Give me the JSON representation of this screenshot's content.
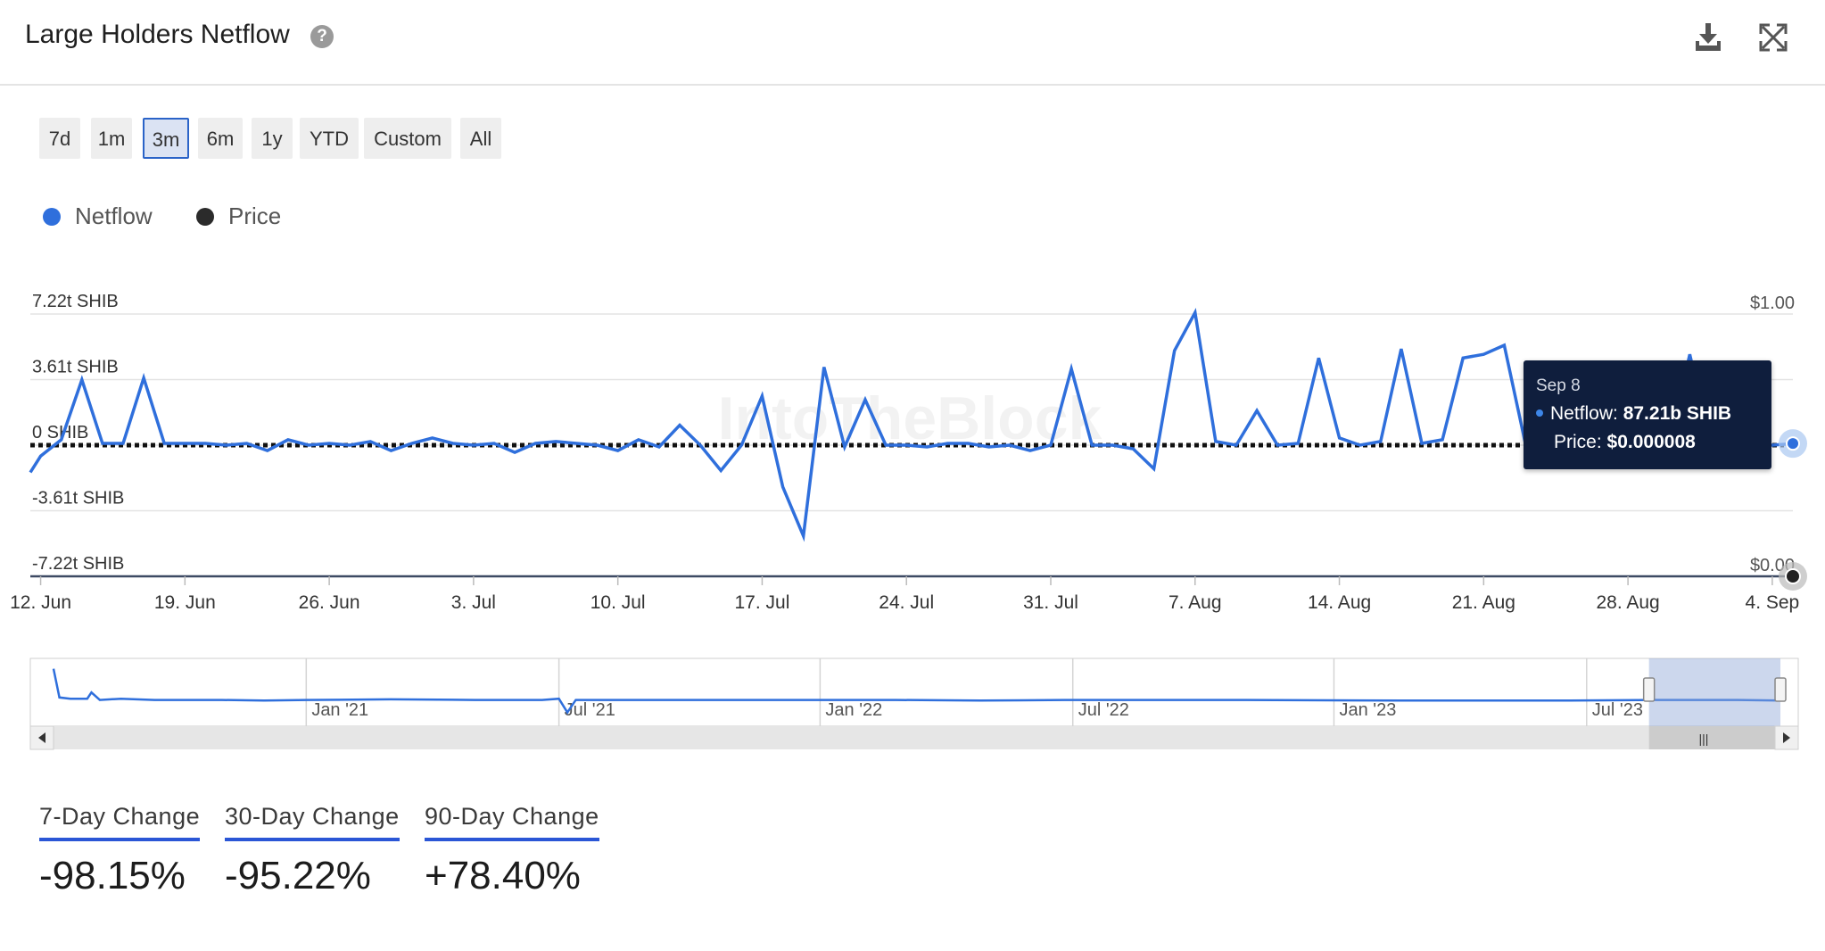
{
  "header": {
    "title": "Large Holders Netflow"
  },
  "range_buttons": [
    {
      "label": "7d",
      "active": false
    },
    {
      "label": "1m",
      "active": false
    },
    {
      "label": "3m",
      "active": true
    },
    {
      "label": "6m",
      "active": false
    },
    {
      "label": "1y",
      "active": false
    },
    {
      "label": "YTD",
      "active": false
    },
    {
      "label": "Custom",
      "active": false
    },
    {
      "label": "All",
      "active": false
    }
  ],
  "legend": [
    {
      "name": "Netflow",
      "color": "#2f6fdc"
    },
    {
      "name": "Price",
      "color": "#2b2b2b"
    }
  ],
  "tooltip": {
    "date": "Sep 8",
    "netflow_label": "Netflow:",
    "netflow_value": "87.21b SHIB",
    "price_label": "Price:",
    "price_value": "$0.000008"
  },
  "watermark": "IntoTheBlock",
  "chart_data": {
    "type": "line",
    "y_left": {
      "ticks": [
        7.22,
        3.61,
        0,
        -3.61,
        -7.22
      ],
      "labels": [
        "7.22t SHIB",
        "3.61t SHIB",
        "0 SHIB",
        "-3.61t SHIB",
        "-7.22t SHIB"
      ],
      "unit": "t SHIB"
    },
    "y_right": {
      "ticks": [
        1.0,
        0.0
      ],
      "labels": [
        "$1.00",
        "$0.00"
      ]
    },
    "x_ticks": [
      {
        "label": "12. Jun",
        "day": 0
      },
      {
        "label": "19. Jun",
        "day": 7
      },
      {
        "label": "26. Jun",
        "day": 14
      },
      {
        "label": "3. Jul",
        "day": 21
      },
      {
        "label": "10. Jul",
        "day": 28
      },
      {
        "label": "17. Jul",
        "day": 35
      },
      {
        "label": "24. Jul",
        "day": 42
      },
      {
        "label": "31. Jul",
        "day": 49
      },
      {
        "label": "7. Aug",
        "day": 56
      },
      {
        "label": "14. Aug",
        "day": 63
      },
      {
        "label": "21. Aug",
        "day": 70
      },
      {
        "label": "28. Aug",
        "day": 77
      },
      {
        "label": "4. Sep",
        "day": 84
      }
    ],
    "series": [
      {
        "name": "Netflow",
        "color": "#2f6fdc",
        "points": [
          [
            -0.5,
            -1.5
          ],
          [
            0,
            -0.6
          ],
          [
            1,
            0.3
          ],
          [
            2,
            3.6
          ],
          [
            3,
            0.1
          ],
          [
            4,
            0.1
          ],
          [
            5,
            3.7
          ],
          [
            6,
            0.1
          ],
          [
            7,
            0.1
          ],
          [
            8,
            0.1
          ],
          [
            9,
            0.0
          ],
          [
            10,
            0.1
          ],
          [
            11,
            -0.3
          ],
          [
            12,
            0.3
          ],
          [
            13,
            0.0
          ],
          [
            14,
            0.1
          ],
          [
            15,
            0.0
          ],
          [
            16,
            0.2
          ],
          [
            17,
            -0.3
          ],
          [
            18,
            0.1
          ],
          [
            19,
            0.4
          ],
          [
            20,
            0.1
          ],
          [
            21,
            0.0
          ],
          [
            22,
            0.1
          ],
          [
            23,
            -0.4
          ],
          [
            24,
            0.1
          ],
          [
            25,
            0.2
          ],
          [
            26,
            0.1
          ],
          [
            27,
            0.0
          ],
          [
            28,
            -0.3
          ],
          [
            29,
            0.3
          ],
          [
            30,
            -0.1
          ],
          [
            31,
            1.1
          ],
          [
            32,
            0.0
          ],
          [
            33,
            -1.4
          ],
          [
            34,
            0.0
          ],
          [
            35,
            2.7
          ],
          [
            36,
            -2.3
          ],
          [
            37,
            -5.0
          ],
          [
            38,
            4.3
          ],
          [
            39,
            -0.1
          ],
          [
            40,
            2.5
          ],
          [
            41,
            0.0
          ],
          [
            42,
            0.0
          ],
          [
            43,
            -0.1
          ],
          [
            44,
            0.1
          ],
          [
            45,
            0.1
          ],
          [
            46,
            -0.1
          ],
          [
            47,
            0.0
          ],
          [
            48,
            -0.3
          ],
          [
            49,
            0.0
          ],
          [
            50,
            4.2
          ],
          [
            51,
            0.0
          ],
          [
            52,
            0.0
          ],
          [
            53,
            -0.2
          ],
          [
            54,
            -1.3
          ],
          [
            55,
            5.2
          ],
          [
            56,
            7.3
          ],
          [
            57,
            0.2
          ],
          [
            58,
            0.0
          ],
          [
            59,
            1.9
          ],
          [
            60,
            0.0
          ],
          [
            61,
            0.1
          ],
          [
            62,
            4.8
          ],
          [
            63,
            0.4
          ],
          [
            64,
            0.0
          ],
          [
            65,
            0.2
          ],
          [
            66,
            5.3
          ],
          [
            67,
            0.1
          ],
          [
            68,
            0.3
          ],
          [
            69,
            4.8
          ],
          [
            70,
            5.0
          ],
          [
            71,
            5.5
          ],
          [
            72,
            0.2
          ],
          [
            73,
            1.2
          ],
          [
            74,
            0.0
          ],
          [
            75,
            1.1
          ],
          [
            76,
            0.0
          ],
          [
            77,
            0.0
          ],
          [
            78,
            2.9
          ],
          [
            79,
            0.0
          ],
          [
            80,
            5.0
          ],
          [
            81,
            0.0
          ],
          [
            82,
            0.0
          ],
          [
            83,
            0.1
          ],
          [
            84,
            0.0
          ],
          [
            85,
            0.09
          ]
        ]
      },
      {
        "name": "Price",
        "color": "#111111",
        "points": [
          [
            -0.5,
            8e-06
          ],
          [
            85,
            8e-06
          ]
        ]
      }
    ],
    "x_range": [
      -0.5,
      85
    ],
    "y_range": [
      -7.22,
      7.22
    ]
  },
  "navigator": {
    "labels": [
      "Jan '21",
      "Jul '21",
      "Jan '22",
      "Jul '22",
      "Jan '23",
      "Jul '23"
    ],
    "series": [
      [
        0,
        2.6
      ],
      [
        0.7,
        0.3
      ],
      [
        2,
        0.2
      ],
      [
        4,
        0.2
      ],
      [
        4.5,
        0.7
      ],
      [
        5.5,
        0.1
      ],
      [
        8,
        0.2
      ],
      [
        12,
        0.1
      ],
      [
        20,
        0.1
      ],
      [
        25,
        0.05
      ],
      [
        30,
        0.1
      ],
      [
        40,
        0.15
      ],
      [
        50,
        0.1
      ],
      [
        58,
        0.1
      ],
      [
        60,
        0.2
      ],
      [
        61,
        -0.9
      ],
      [
        62,
        0.1
      ],
      [
        70,
        0.1
      ],
      [
        85,
        0.1
      ],
      [
        90,
        0.1
      ],
      [
        100,
        0.1
      ],
      [
        110,
        0.05
      ],
      [
        120,
        0.1
      ],
      [
        140,
        0.1
      ],
      [
        160,
        0.05
      ],
      [
        180,
        0.05
      ],
      [
        190,
        0.1
      ],
      [
        200,
        0.1
      ],
      [
        205,
        0.05
      ]
    ],
    "selection": [
      189.4,
      205
    ]
  },
  "stats": [
    {
      "label": "7-Day Change",
      "value": "-98.15%"
    },
    {
      "label": "30-Day Change",
      "value": "-95.22%"
    },
    {
      "label": "90-Day Change",
      "value": "+78.40%"
    }
  ]
}
